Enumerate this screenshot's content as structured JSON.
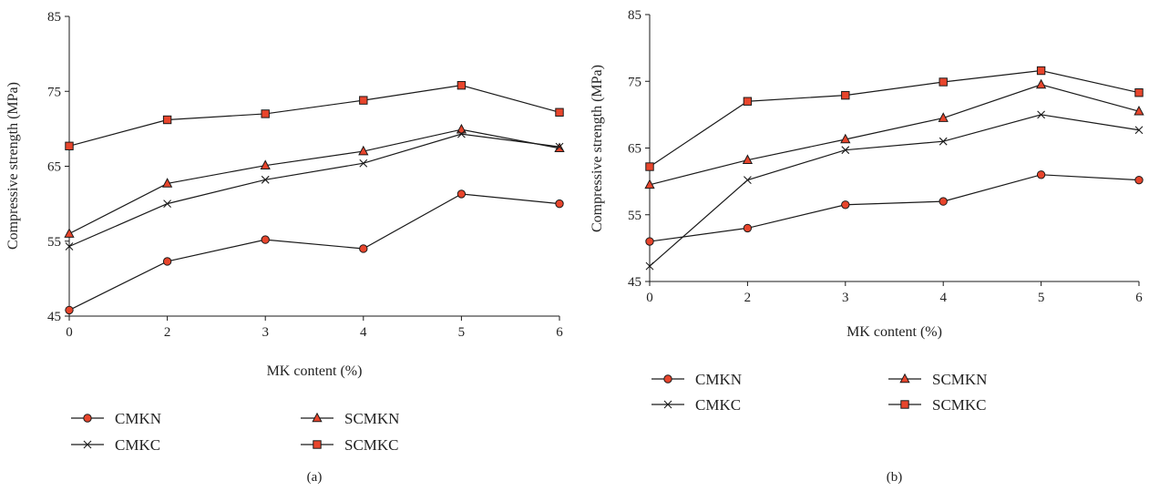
{
  "figure": {
    "colors": {
      "marker_fill": "#e8452c",
      "line": "#1a1a1a",
      "axis": "#1a1a1a"
    }
  },
  "chart_data": [
    {
      "panel_label": "(a)",
      "type": "line",
      "x": [
        0,
        2,
        3,
        4,
        5,
        6
      ],
      "xlabel": "MK content (%)",
      "ylabel": "Compressive strength (MPa)",
      "ylim": [
        45,
        85
      ],
      "yticks": [
        45,
        55,
        65,
        75,
        85
      ],
      "xticks": [
        "0",
        "2",
        "3",
        "4",
        "5",
        "6"
      ],
      "grid": false,
      "legend_position": "bottom",
      "series": [
        {
          "name": "CMKN",
          "marker": "circle",
          "values": [
            45.8,
            52.3,
            55.2,
            54.0,
            61.3,
            60.0
          ]
        },
        {
          "name": "SCMKN",
          "marker": "triangle",
          "values": [
            56.0,
            62.7,
            65.1,
            67.0,
            69.9,
            67.4
          ]
        },
        {
          "name": "CMKC",
          "marker": "cross",
          "values": [
            54.3,
            60.0,
            63.2,
            65.4,
            69.3,
            67.6
          ]
        },
        {
          "name": "SCMKC",
          "marker": "square",
          "values": [
            67.7,
            71.2,
            72.0,
            73.8,
            75.8,
            72.2
          ]
        }
      ]
    },
    {
      "panel_label": "(b)",
      "type": "line",
      "x": [
        0,
        2,
        3,
        4,
        5,
        6
      ],
      "xlabel": "MK content (%)",
      "ylabel": "Compressive strength (MPa)",
      "ylim": [
        45,
        85
      ],
      "yticks": [
        45,
        55,
        65,
        75,
        85
      ],
      "xticks": [
        "0",
        "2",
        "3",
        "4",
        "5",
        "6"
      ],
      "grid": false,
      "legend_position": "bottom",
      "series": [
        {
          "name": "CMKN",
          "marker": "circle",
          "values": [
            51.0,
            53.0,
            56.5,
            57.0,
            61.0,
            60.2
          ]
        },
        {
          "name": "SCMKN",
          "marker": "triangle",
          "values": [
            59.5,
            63.2,
            66.3,
            69.5,
            74.5,
            70.5
          ]
        },
        {
          "name": "CMKC",
          "marker": "cross",
          "values": [
            47.3,
            60.2,
            64.7,
            66.0,
            70.0,
            67.7
          ]
        },
        {
          "name": "SCMKC",
          "marker": "square",
          "values": [
            62.2,
            72.0,
            72.9,
            74.9,
            76.6,
            73.3
          ]
        }
      ]
    }
  ]
}
